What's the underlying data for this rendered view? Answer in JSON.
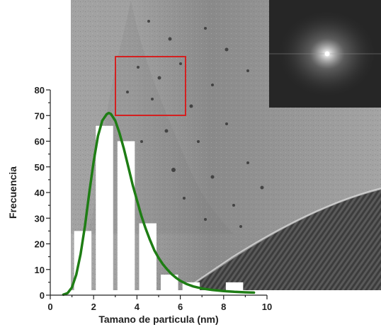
{
  "chart_data": {
    "type": "bar",
    "xlabel": "Tamano de particula (nm)",
    "ylabel": "Frecuencia",
    "xlim": [
      0,
      10
    ],
    "ylim": [
      0,
      80
    ],
    "x_ticks": [
      0,
      2,
      4,
      6,
      8,
      10
    ],
    "y_ticks": [
      0,
      10,
      20,
      30,
      40,
      50,
      60,
      70,
      80
    ],
    "bin_width": 0.8,
    "bins": [
      {
        "x": 1.5,
        "value": 25
      },
      {
        "x": 2.5,
        "value": 66
      },
      {
        "x": 3.5,
        "value": 60
      },
      {
        "x": 4.5,
        "value": 28
      },
      {
        "x": 5.5,
        "value": 8
      },
      {
        "x": 6.5,
        "value": 5
      },
      {
        "x": 7.5,
        "value": 1
      },
      {
        "x": 8.5,
        "value": 5
      }
    ],
    "fit_curve": {
      "type": "log-normal",
      "color": "#1e7d14",
      "x": [
        0.6,
        0.8,
        1.0,
        1.2,
        1.4,
        1.6,
        1.8,
        2.0,
        2.2,
        2.4,
        2.6,
        2.7,
        2.8,
        3.0,
        3.2,
        3.4,
        3.6,
        3.8,
        4.0,
        4.2,
        4.4,
        4.6,
        4.8,
        5.0,
        5.2,
        5.4,
        5.6,
        5.8,
        6.0,
        6.3,
        6.6,
        7.0,
        7.5,
        8.0,
        8.5,
        9.0,
        9.4
      ],
      "y": [
        0.2,
        0.8,
        3,
        8,
        16,
        27,
        40,
        52,
        62,
        68,
        70.5,
        71,
        70.6,
        68,
        63,
        57,
        50,
        43,
        37,
        31,
        26,
        21.5,
        17.5,
        14.5,
        12,
        10,
        8.2,
        6.8,
        5.6,
        4.3,
        3.4,
        2.6,
        2.0,
        1.6,
        1.3,
        1.1,
        1.0
      ]
    }
  },
  "image": {
    "description_hidden": "",
    "selection_box_color": "#d42020"
  }
}
